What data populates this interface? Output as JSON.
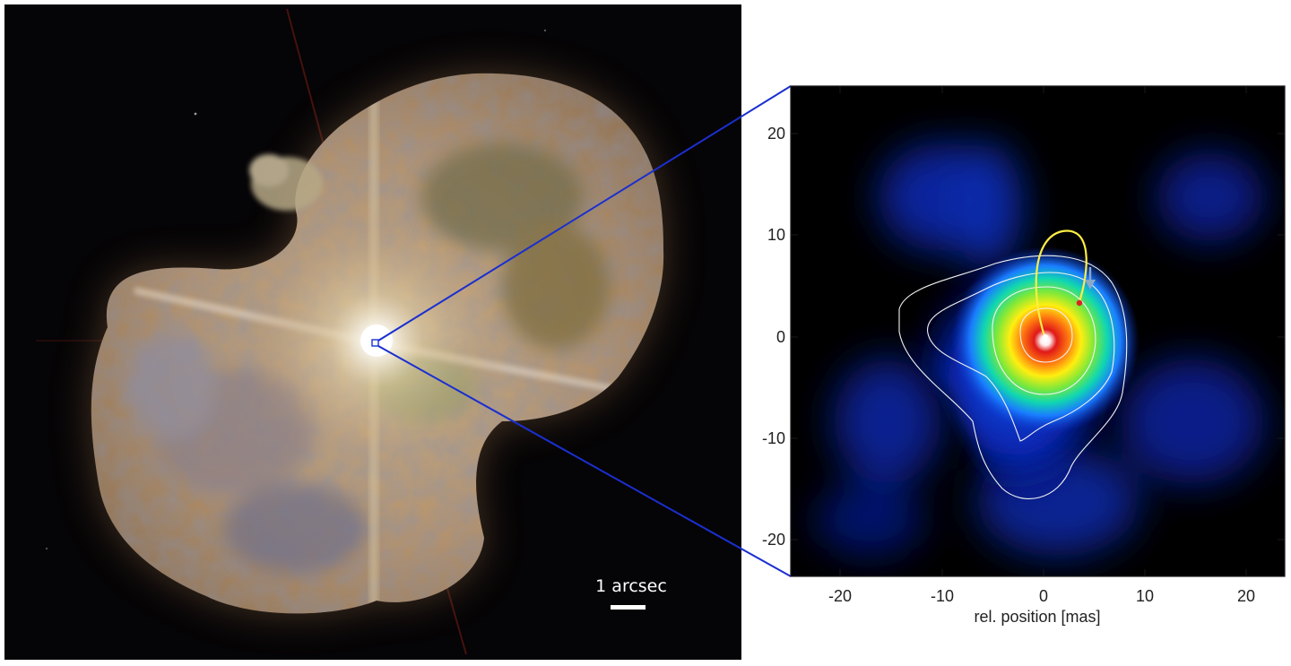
{
  "left_panel": {
    "scalebar_label": "1 arcsec"
  },
  "right_panel": {
    "xlabel": "rel. position [mas]",
    "x_ticks": [
      "-20",
      "-10",
      "0",
      "10",
      "20"
    ],
    "y_ticks": [
      "20",
      "10",
      "0",
      "-10",
      "-20"
    ]
  },
  "colors": {
    "zoom_lines": "#1a2fd0",
    "orbit": "#ffee44",
    "contours": "#f2f2f2",
    "arrow": "#8aa8c8",
    "companion_marker": "#dd2222"
  }
}
